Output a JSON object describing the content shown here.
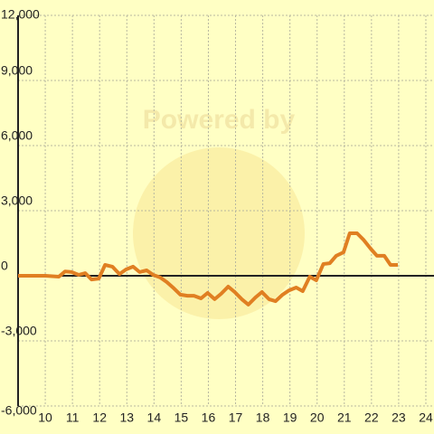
{
  "chart_data": {
    "type": "line",
    "watermark": "Powered by",
    "x": [
      9,
      10,
      10.5,
      10.73,
      10.97,
      11.23,
      11.47,
      11.7,
      11.97,
      12.2,
      12.47,
      12.73,
      12.97,
      13.23,
      13.47,
      13.73,
      13.97,
      14.23,
      14.47,
      14.73,
      14.97,
      15.23,
      15.47,
      15.73,
      15.97,
      16.23,
      16.47,
      16.73,
      16.97,
      17.23,
      17.47,
      17.73,
      17.97,
      18.23,
      18.47,
      18.73,
      18.97,
      19.23,
      19.47,
      19.73,
      19.97,
      20.23,
      20.47,
      20.7,
      20.97,
      21.2,
      21.47,
      21.7,
      21.97,
      22.2,
      22.47,
      22.7,
      22.97
    ],
    "series": [
      {
        "color": "#e07f22",
        "values": [
          0,
          0,
          -40,
          200,
          170,
          40,
          120,
          -170,
          -130,
          500,
          420,
          80,
          290,
          420,
          170,
          250,
          40,
          -80,
          -290,
          -580,
          -870,
          -920,
          -920,
          -1040,
          -790,
          -1080,
          -830,
          -500,
          -750,
          -1080,
          -1330,
          -1000,
          -750,
          -1080,
          -1170,
          -870,
          -670,
          -540,
          -710,
          -40,
          -210,
          540,
          580,
          920,
          1080,
          1960,
          1960,
          1670,
          1250,
          920,
          920,
          500,
          500
        ]
      }
    ],
    "xlim": [
      9,
      24.3
    ],
    "xticks": [
      10,
      11,
      12,
      13,
      14,
      15,
      16,
      17,
      18,
      19,
      20,
      21,
      22,
      23,
      24
    ],
    "ylim": [
      -6000,
      12000
    ],
    "yticks": [
      {
        "value": -6000,
        "label": "-6,000"
      },
      {
        "value": -3000,
        "label": "-3,000"
      },
      0,
      {
        "value": 3000,
        "label": "3,000"
      },
      {
        "value": 6000,
        "label": "6,000"
      },
      {
        "value": 9000,
        "label": "9,000"
      },
      {
        "value": 12000,
        "label": "12,000"
      }
    ],
    "grid": true
  }
}
